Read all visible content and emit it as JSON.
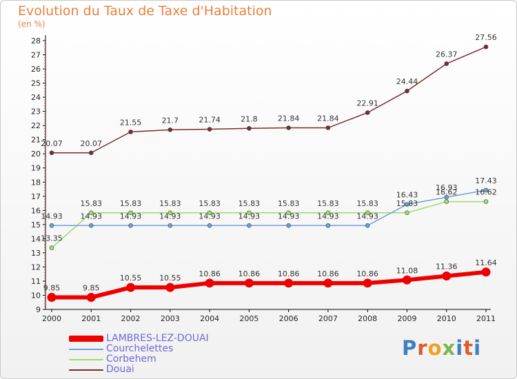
{
  "title": "Evolution du Taux de Taxe d'Habitation",
  "subtitle": "(en %)",
  "logo": {
    "text": "Proxiti",
    "colors": [
      "#3d7fc4",
      "#e05a2a",
      "#f0a020",
      "#7ab648",
      "#3d7fc4",
      "#e05a2a",
      "#3d7fc4"
    ]
  },
  "chart_data": {
    "type": "line",
    "title": "Evolution du Taux de Taxe d'Habitation",
    "ylabel": "(en %)",
    "xlabel": "",
    "x": [
      "2000",
      "2001",
      "2002",
      "2003",
      "2004",
      "2005",
      "2006",
      "2007",
      "2008",
      "2009",
      "2010",
      "2011"
    ],
    "ylim": [
      9,
      28
    ],
    "yticks": [
      "9",
      "10",
      "11",
      "12",
      "13",
      "14",
      "15",
      "16",
      "17",
      "18",
      "19",
      "20",
      "21",
      "22",
      "23",
      "24",
      "25",
      "26",
      "27",
      "28"
    ],
    "grid": false,
    "legend_position": "bottom-left",
    "series": [
      {
        "name": "LAMBRES-LEZ-DOUAI",
        "color": "#ee0000",
        "values": [
          9.85,
          9.85,
          10.55,
          10.55,
          10.86,
          10.86,
          10.86,
          10.86,
          10.86,
          11.08,
          11.36,
          11.64
        ],
        "labels": [
          "9.85",
          "9.85",
          "10.55",
          "10.55",
          "10.86",
          "10.86",
          "10.86",
          "10.86",
          "10.86",
          "11.08",
          "11.36",
          "11.64"
        ]
      },
      {
        "name": "Courchelettes",
        "color": "#6a9fd8",
        "values": [
          14.93,
          14.93,
          14.93,
          14.93,
          14.93,
          14.93,
          14.93,
          14.93,
          14.93,
          16.43,
          16.93,
          17.43
        ],
        "labels": [
          "14.93",
          "14.93",
          "14.93",
          "14.93",
          "14.93",
          "14.93",
          "14.93",
          "14.93",
          "14.93",
          "16.43",
          "16.93",
          "17.43"
        ]
      },
      {
        "name": "Corbehem",
        "color": "#99dd66",
        "values": [
          13.35,
          15.83,
          15.83,
          15.83,
          15.83,
          15.83,
          15.83,
          15.83,
          15.83,
          15.83,
          16.62,
          16.62
        ],
        "labels": [
          "13.35",
          "15.83",
          "15.83",
          "15.83",
          "15.83",
          "15.83",
          "15.83",
          "15.83",
          "15.83",
          "15.83",
          "16.62",
          "16.62"
        ]
      },
      {
        "name": "Douai",
        "color": "#7a2b2b",
        "values": [
          20.07,
          20.07,
          21.55,
          21.7,
          21.74,
          21.8,
          21.84,
          21.84,
          22.91,
          24.44,
          26.37,
          27.56
        ],
        "labels": [
          "20.07",
          "20.07",
          "21.55",
          "21.7",
          "21.74",
          "21.8",
          "21.84",
          "21.84",
          "22.91",
          "24.44",
          "26.37",
          "27.56"
        ]
      }
    ]
  }
}
